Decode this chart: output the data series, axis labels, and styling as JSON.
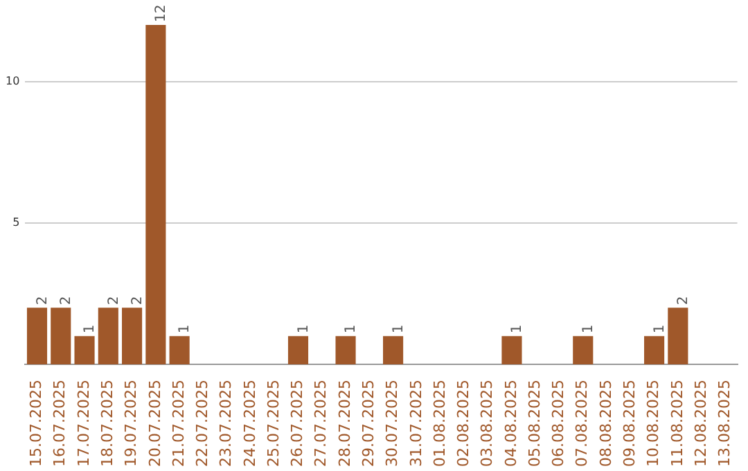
{
  "chart_data": {
    "type": "bar",
    "categories": [
      "15.07.2025",
      "16.07.2025",
      "17.07.2025",
      "18.07.2025",
      "19.07.2025",
      "20.07.2025",
      "21.07.2025",
      "22.07.2025",
      "23.07.2025",
      "24.07.2025",
      "25.07.2025",
      "26.07.2025",
      "27.07.2025",
      "28.07.2025",
      "29.07.2025",
      "30.07.2025",
      "31.07.2025",
      "01.08.2025",
      "02.08.2025",
      "03.08.2025",
      "04.08.2025",
      "05.08.2025",
      "06.08.2025",
      "07.08.2025",
      "08.08.2025",
      "09.08.2025",
      "10.08.2025",
      "11.08.2025",
      "12.08.2025",
      "13.08.2025"
    ],
    "values": [
      2,
      2,
      1,
      2,
      2,
      12,
      1,
      0,
      0,
      0,
      0,
      1,
      0,
      1,
      0,
      1,
      0,
      0,
      0,
      0,
      1,
      0,
      0,
      1,
      0,
      0,
      1,
      2,
      0,
      0
    ],
    "value_labels": [
      "2",
      "2",
      "1",
      "2",
      "2",
      "12",
      "1",
      null,
      null,
      null,
      null,
      "1",
      null,
      "1",
      null,
      "1",
      null,
      null,
      null,
      null,
      "1",
      null,
      null,
      "1",
      null,
      null,
      "1",
      "2",
      null,
      null
    ],
    "color": "#a0582a",
    "ylim": [
      0,
      12
    ],
    "yticks": [
      5,
      10
    ],
    "grid": "y",
    "legend": false
  }
}
